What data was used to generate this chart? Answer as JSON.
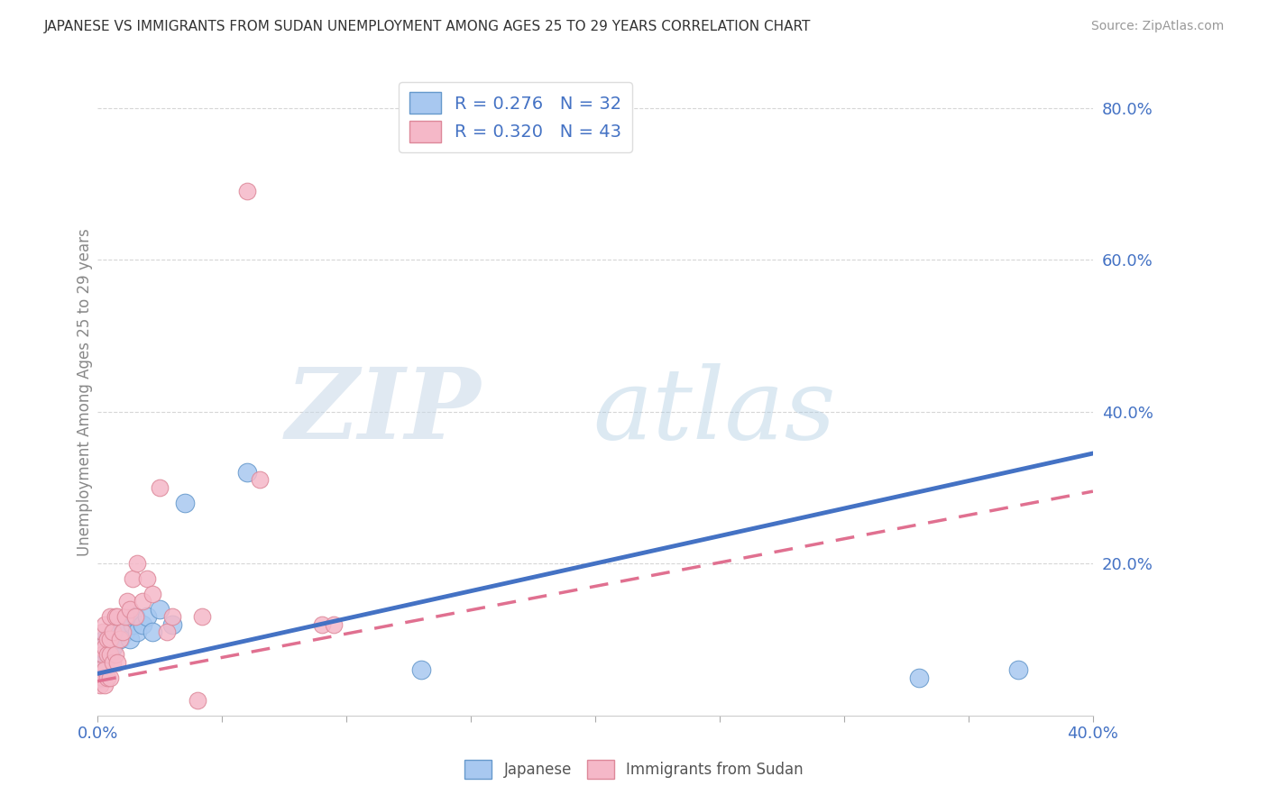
{
  "title": "JAPANESE VS IMMIGRANTS FROM SUDAN UNEMPLOYMENT AMONG AGES 25 TO 29 YEARS CORRELATION CHART",
  "source": "Source: ZipAtlas.com",
  "ylabel": "Unemployment Among Ages 25 to 29 years",
  "legend_labels": [
    "Japanese",
    "Immigrants from Sudan"
  ],
  "legend_R": [
    0.276,
    0.32
  ],
  "legend_N": [
    32,
    43
  ],
  "watermark_zip": "ZIP",
  "watermark_atlas": "atlas",
  "blue_color": "#A8C8F0",
  "pink_color": "#F5B8C8",
  "blue_edge_color": "#6699CC",
  "pink_edge_color": "#DD8899",
  "blue_line_color": "#4472C4",
  "pink_line_color": "#E07090",
  "text_color": "#4472C4",
  "background_color": "#FFFFFF",
  "japanese_x": [
    0.001,
    0.001,
    0.002,
    0.002,
    0.003,
    0.003,
    0.004,
    0.004,
    0.005,
    0.005,
    0.006,
    0.006,
    0.007,
    0.008,
    0.009,
    0.01,
    0.011,
    0.012,
    0.013,
    0.014,
    0.015,
    0.016,
    0.018,
    0.02,
    0.022,
    0.025,
    0.03,
    0.035,
    0.06,
    0.13,
    0.33,
    0.37
  ],
  "japanese_y": [
    0.05,
    0.08,
    0.06,
    0.09,
    0.07,
    0.1,
    0.08,
    0.1,
    0.08,
    0.1,
    0.09,
    0.11,
    0.1,
    0.11,
    0.1,
    0.12,
    0.11,
    0.12,
    0.1,
    0.12,
    0.13,
    0.11,
    0.12,
    0.13,
    0.11,
    0.14,
    0.12,
    0.28,
    0.32,
    0.06,
    0.05,
    0.06
  ],
  "sudan_x": [
    0.001,
    0.001,
    0.001,
    0.002,
    0.002,
    0.002,
    0.003,
    0.003,
    0.003,
    0.003,
    0.004,
    0.004,
    0.004,
    0.005,
    0.005,
    0.005,
    0.005,
    0.006,
    0.006,
    0.007,
    0.007,
    0.008,
    0.008,
    0.009,
    0.01,
    0.011,
    0.012,
    0.013,
    0.014,
    0.015,
    0.016,
    0.018,
    0.02,
    0.022,
    0.025,
    0.028,
    0.03,
    0.04,
    0.042,
    0.06,
    0.065,
    0.09,
    0.095
  ],
  "sudan_y": [
    0.04,
    0.06,
    0.09,
    0.05,
    0.08,
    0.11,
    0.04,
    0.06,
    0.09,
    0.12,
    0.05,
    0.08,
    0.1,
    0.05,
    0.08,
    0.1,
    0.13,
    0.07,
    0.11,
    0.08,
    0.13,
    0.07,
    0.13,
    0.1,
    0.11,
    0.13,
    0.15,
    0.14,
    0.18,
    0.13,
    0.2,
    0.15,
    0.18,
    0.16,
    0.3,
    0.11,
    0.13,
    0.02,
    0.13,
    0.69,
    0.31,
    0.12,
    0.12
  ],
  "xlim": [
    0.0,
    0.4
  ],
  "ylim": [
    0.0,
    0.85
  ],
  "yticks": [
    0.2,
    0.4,
    0.6,
    0.8
  ],
  "ytick_labels": [
    "20.0%",
    "40.0%",
    "60.0%",
    "80.0%"
  ],
  "xticks": [
    0.0,
    0.05,
    0.1,
    0.15,
    0.2,
    0.25,
    0.3,
    0.35,
    0.4
  ],
  "xtick_labels_show": [
    true,
    false,
    false,
    false,
    false,
    false,
    false,
    false,
    true
  ],
  "blue_line_x": [
    0.0,
    0.4
  ],
  "blue_line_y": [
    0.055,
    0.345
  ],
  "pink_line_x": [
    0.0,
    0.4
  ],
  "pink_line_y": [
    0.045,
    0.295
  ]
}
